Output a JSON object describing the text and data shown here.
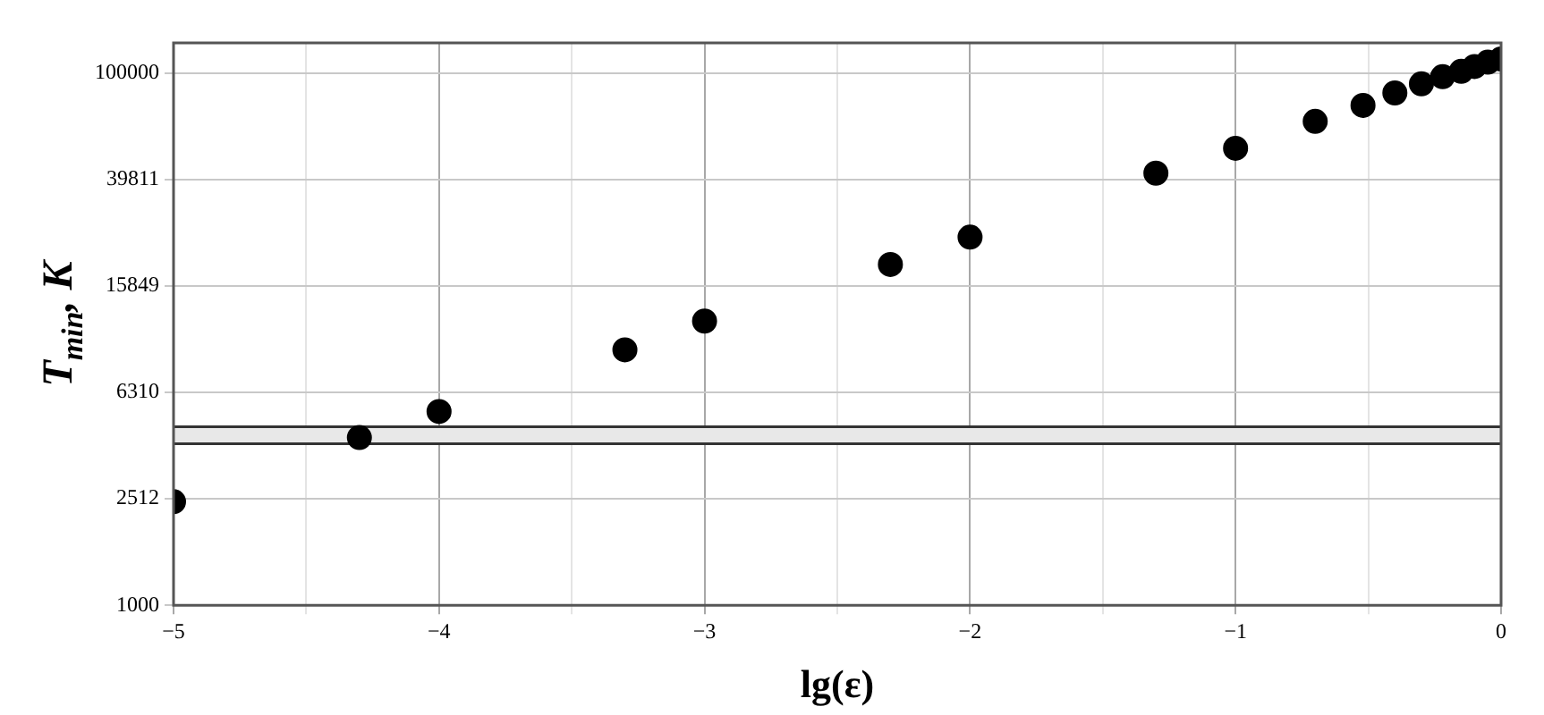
{
  "chart_data": {
    "type": "scatter",
    "xlabel": "lg(ε)",
    "ylabel": "T$_{min}$, K",
    "x": [
      -5,
      -4.3,
      -4,
      -3.3,
      -3,
      -2.3,
      -2,
      -1.3,
      -1,
      -0.7,
      -0.52,
      -0.4,
      -0.3,
      -0.22,
      -0.15,
      -0.1,
      -0.05,
      0
    ],
    "series": [
      {
        "color": "#000000",
        "values": [
          2450,
          4270,
          5350,
          9120,
          11700,
          19100,
          24200,
          42100,
          52200,
          65900,
          75700,
          84300,
          91200,
          97000,
          101600,
          106000,
          110000,
          113000
        ]
      }
    ],
    "xlim": [
      -5,
      0
    ],
    "xticks": [
      -5,
      {
        "value": -4.5,
        "label": null
      },
      -4,
      {
        "value": -3.5,
        "label": null
      },
      -3,
      {
        "value": -2.5,
        "label": null
      },
      -2,
      {
        "value": -1.5,
        "label": null
      },
      -1,
      {
        "value": -0.5,
        "label": null
      },
      0
    ],
    "ylim": [
      1000,
      130000
    ],
    "yticks": [
      1000,
      2512,
      6310,
      15849,
      39811,
      100000
    ],
    "log": "y",
    "grid": true,
    "legend": false,
    "marker": "circle",
    "bands": [
      {
        "axis": "y",
        "from": 4050,
        "to": 4690,
        "color": "#e8e8e8"
      }
    ],
    "ref_lines": [
      {
        "axis": "y",
        "value": 4050,
        "color": "#333333"
      },
      {
        "axis": "y",
        "value": 4690,
        "color": "#333333"
      }
    ]
  }
}
